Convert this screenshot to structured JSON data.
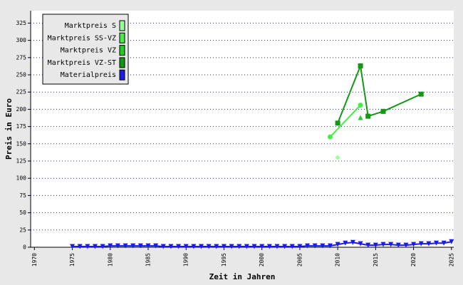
{
  "chart_data": {
    "type": "line",
    "x_label": "Zeit in Jahren",
    "y_label": "Preis in Euro",
    "xlim": [
      1969.5,
      2025.3
    ],
    "ylim": [
      0,
      343
    ],
    "xticks": [
      1970,
      1975,
      1980,
      1985,
      1990,
      1995,
      2000,
      2005,
      2010,
      2015,
      2020,
      2025
    ],
    "yticks": [
      0,
      25,
      50,
      75,
      100,
      125,
      150,
      175,
      200,
      225,
      250,
      275,
      300,
      325
    ],
    "grid": true,
    "legend": "upper-left",
    "series": [
      {
        "name": "Marktpreis S",
        "color": "#99ff99",
        "marker": "diamond",
        "x": [
          2010
        ],
        "values": [
          130
        ]
      },
      {
        "name": "Marktpreis SS-VZ",
        "color": "#44ee44",
        "marker": "circle",
        "x": [
          2009,
          2013
        ],
        "values": [
          160,
          206
        ]
      },
      {
        "name": "Marktpreis VZ",
        "color": "#22cc22",
        "marker": "triangle",
        "x": [
          2013
        ],
        "values": [
          188
        ]
      },
      {
        "name": "Marktpreis VZ-ST",
        "color": "#119911",
        "marker": "square",
        "x": [
          2010,
          2013,
          2014,
          2016,
          2021
        ],
        "values": [
          180,
          263,
          190,
          197,
          222
        ]
      },
      {
        "name": "Materialpreis",
        "color": "#1a1aee",
        "marker": "triangle-down",
        "x": [
          1975,
          1976,
          1977,
          1978,
          1979,
          1980,
          1981,
          1982,
          1983,
          1984,
          1985,
          1986,
          1987,
          1988,
          1989,
          1990,
          1991,
          1992,
          1993,
          1994,
          1995,
          1996,
          1997,
          1998,
          1999,
          2000,
          2001,
          2002,
          2003,
          2004,
          2005,
          2006,
          2007,
          2008,
          2009,
          2010,
          2011,
          2012,
          2013,
          2014,
          2015,
          2016,
          2017,
          2018,
          2019,
          2020,
          2021,
          2022,
          2023,
          2024,
          2025
        ],
        "values": [
          1,
          1,
          1,
          1,
          1,
          2,
          2,
          2,
          2,
          2,
          2,
          2,
          1,
          1,
          1,
          1,
          1,
          1,
          1,
          1,
          1,
          1,
          1,
          1,
          1,
          1,
          1,
          1,
          1,
          1,
          1,
          2,
          2,
          2,
          2,
          4,
          6,
          7,
          5,
          3,
          3,
          4,
          4,
          3,
          3,
          4,
          5,
          5,
          6,
          6,
          8
        ]
      }
    ]
  }
}
